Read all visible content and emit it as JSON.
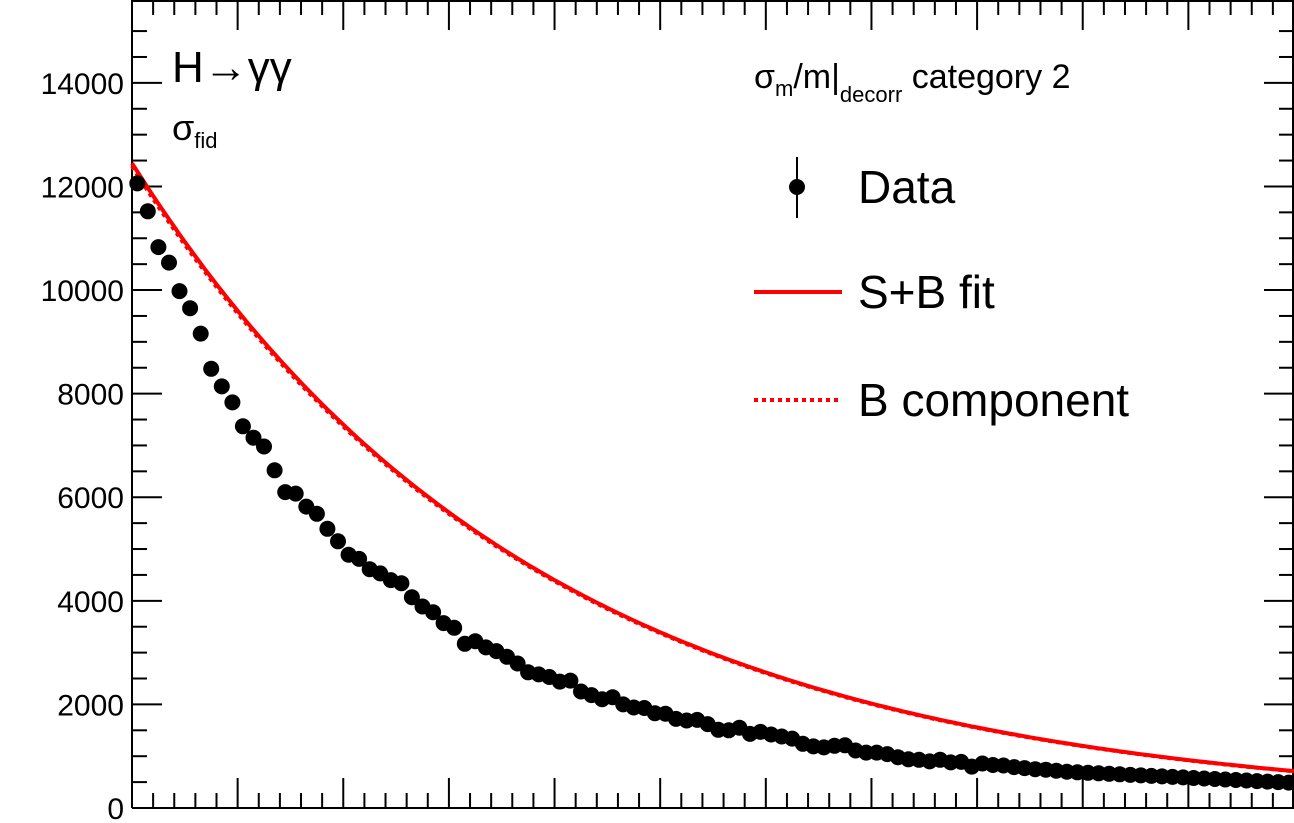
{
  "chart_data": {
    "type": "scatter",
    "title": "",
    "xlabel": "",
    "ylabel": "",
    "ylim": [
      0,
      15600
    ],
    "xlim": [
      105,
      160
    ],
    "yticks": [
      0,
      2000,
      4000,
      6000,
      8000,
      10000,
      12000,
      14000
    ],
    "ytick_labels": [
      "0",
      "2000",
      "4000",
      "6000",
      "8000",
      "10000",
      "12000",
      "14000"
    ],
    "grid": false,
    "legend_placement": "top-right",
    "annotations": {
      "process": "H→γγ",
      "observable_symbol": "σ",
      "observable_sub": "fid",
      "category_pre": "σ",
      "category_sub_m": "m",
      "category_mid": "/m|",
      "category_sub_decorr": "decorr",
      "category_post": " category 2"
    },
    "legend": [
      {
        "label": "Data",
        "style": "marker-errorbar",
        "color": "#000000"
      },
      {
        "label": "S+B fit",
        "style": "solid-line",
        "color": "#ff0000"
      },
      {
        "label": "B component",
        "style": "dotted-line",
        "color": "#ff0000"
      }
    ],
    "series": [
      {
        "name": "Data",
        "kind": "points",
        "x": [
          105.25,
          105.75,
          106.25,
          106.75,
          107.25,
          107.75,
          108.25,
          108.75,
          109.25,
          109.75,
          110.25,
          110.75,
          111.25,
          111.75,
          112.25,
          112.75,
          113.25,
          113.75,
          114.25,
          114.75,
          115.25,
          115.75,
          116.25,
          116.75,
          117.25,
          117.75,
          118.25,
          118.75,
          119.25,
          119.75,
          120.25,
          120.75,
          121.25,
          121.75,
          122.25,
          122.75,
          123.25,
          123.75,
          124.25,
          124.75,
          125.25,
          125.75,
          126.25,
          126.75,
          127.25,
          127.75,
          128.25,
          128.75,
          129.25,
          129.75,
          130.25,
          130.75,
          131.25,
          131.75,
          132.25,
          132.75,
          133.25,
          133.75,
          134.25,
          134.75,
          135.25,
          135.75,
          136.25,
          136.75,
          137.25,
          137.75,
          138.25,
          138.75,
          139.25,
          139.75,
          140.25,
          140.75,
          141.25,
          141.75,
          142.25,
          142.75,
          143.25,
          143.75,
          144.25,
          144.75,
          145.25,
          145.75,
          146.25,
          146.75,
          147.25,
          147.75,
          148.25,
          148.75,
          149.25,
          149.75,
          150.25,
          150.75,
          151.25,
          151.75,
          152.25,
          152.75,
          153.25,
          153.75,
          154.25,
          154.75,
          155.25,
          155.75,
          156.25,
          156.75,
          157.25,
          157.75,
          158.25,
          158.75,
          159.25,
          159.75
        ],
        "y": [
          12060,
          11520,
          10830,
          10530,
          9980,
          9650,
          9160,
          8480,
          8140,
          7830,
          7370,
          7150,
          6980,
          6520,
          6100,
          6070,
          5820,
          5680,
          5390,
          5150,
          4890,
          4810,
          4610,
          4530,
          4400,
          4340,
          4070,
          3890,
          3780,
          3570,
          3480,
          3170,
          3220,
          3100,
          3030,
          2920,
          2790,
          2620,
          2580,
          2530,
          2440,
          2460,
          2250,
          2180,
          2100,
          2140,
          2000,
          1940,
          1930,
          1830,
          1820,
          1720,
          1690,
          1700,
          1620,
          1510,
          1500,
          1550,
          1430,
          1470,
          1420,
          1380,
          1340,
          1240,
          1190,
          1170,
          1200,
          1210,
          1110,
          1070,
          1070,
          1040,
          980,
          940,
          930,
          900,
          930,
          880,
          890,
          800,
          860,
          830,
          820,
          790,
          770,
          750,
          740,
          720,
          700,
          690,
          680,
          670,
          660,
          650,
          640,
          630,
          620,
          610,
          600,
          590,
          580,
          570,
          560,
          550,
          540,
          530,
          520,
          510,
          500,
          490
        ]
      },
      {
        "name": "S+B fit",
        "kind": "curve",
        "model": "exponential",
        "y_at_105": 12450,
        "decay_per_unit_x": 0.052,
        "color": "#ff0000"
      }
    ]
  }
}
